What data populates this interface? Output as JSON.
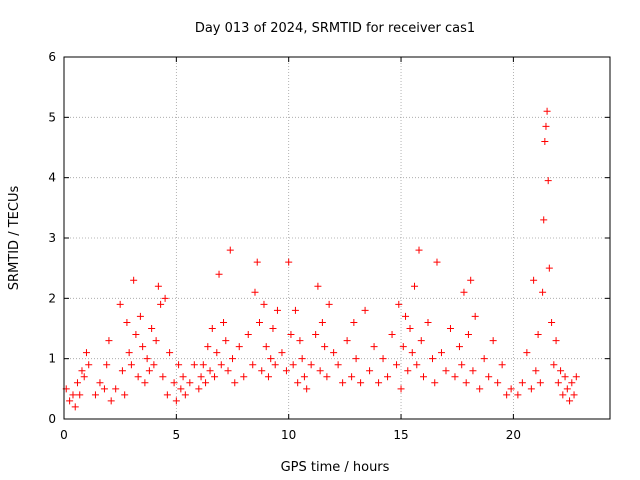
{
  "chart_data": {
    "type": "scatter",
    "title": "Day 013 of 2024, SRMTID for receiver cas1",
    "xlabel": "GPS time / hours",
    "ylabel": "SRMTID / TECUs",
    "xlim": [
      0,
      24.3
    ],
    "ylim": [
      0,
      6
    ],
    "xticks": [
      0,
      5,
      10,
      15,
      20
    ],
    "yticks": [
      0,
      1,
      2,
      3,
      4,
      5,
      6
    ],
    "grid": true,
    "marker": "plus",
    "color": "#ff0000",
    "series": [
      {
        "name": "SRMTID",
        "x": [
          0.1,
          0.25,
          0.4,
          0.5,
          0.6,
          0.7,
          0.8,
          0.9,
          1.0,
          1.1,
          1.4,
          1.6,
          1.8,
          1.9,
          2.0,
          2.1,
          2.3,
          2.5,
          2.6,
          2.7,
          2.8,
          2.9,
          3.0,
          3.1,
          3.2,
          3.3,
          3.4,
          3.5,
          3.6,
          3.7,
          3.8,
          3.9,
          4.0,
          4.1,
          4.2,
          4.3,
          4.4,
          4.5,
          4.6,
          4.7,
          4.9,
          5.0,
          5.1,
          5.2,
          5.3,
          5.4,
          5.6,
          5.8,
          6.0,
          6.1,
          6.2,
          6.3,
          6.4,
          6.5,
          6.6,
          6.7,
          6.8,
          6.9,
          7.0,
          7.1,
          7.2,
          7.3,
          7.4,
          7.5,
          7.6,
          7.8,
          8.0,
          8.2,
          8.4,
          8.5,
          8.6,
          8.7,
          8.8,
          8.9,
          9.0,
          9.1,
          9.2,
          9.3,
          9.4,
          9.5,
          9.7,
          9.9,
          10.0,
          10.1,
          10.2,
          10.3,
          10.4,
          10.5,
          10.6,
          10.7,
          10.8,
          11.0,
          11.2,
          11.3,
          11.4,
          11.5,
          11.6,
          11.7,
          11.8,
          12.0,
          12.2,
          12.4,
          12.6,
          12.8,
          12.9,
          13.0,
          13.2,
          13.4,
          13.6,
          13.8,
          14.0,
          14.2,
          14.4,
          14.6,
          14.8,
          14.9,
          15.0,
          15.1,
          15.2,
          15.3,
          15.4,
          15.5,
          15.6,
          15.7,
          15.8,
          15.9,
          16.0,
          16.2,
          16.4,
          16.5,
          16.6,
          16.8,
          17.0,
          17.2,
          17.4,
          17.6,
          17.7,
          17.8,
          17.9,
          18.0,
          18.1,
          18.2,
          18.3,
          18.5,
          18.7,
          18.9,
          19.1,
          19.3,
          19.5,
          19.7,
          19.9,
          20.2,
          20.4,
          20.6,
          20.8,
          20.9,
          21.0,
          21.1,
          21.2,
          21.3,
          21.35,
          21.4,
          21.45,
          21.5,
          21.55,
          21.6,
          21.7,
          21.8,
          21.9,
          22.0,
          22.1,
          22.2,
          22.3,
          22.4,
          22.5,
          22.6,
          22.7,
          22.8
        ],
        "y": [
          0.5,
          0.3,
          0.4,
          0.2,
          0.6,
          0.4,
          0.8,
          0.7,
          1.1,
          0.9,
          0.4,
          0.6,
          0.5,
          0.9,
          1.3,
          0.3,
          0.5,
          1.9,
          0.8,
          0.4,
          1.6,
          1.1,
          0.9,
          2.3,
          1.4,
          0.7,
          1.7,
          1.2,
          0.6,
          1.0,
          0.8,
          1.5,
          0.9,
          1.3,
          2.2,
          1.9,
          0.7,
          2.0,
          0.4,
          1.1,
          0.6,
          0.3,
          0.9,
          0.5,
          0.7,
          0.4,
          0.6,
          0.9,
          0.5,
          0.7,
          0.9,
          0.6,
          1.2,
          0.8,
          1.5,
          0.7,
          1.1,
          2.4,
          0.9,
          1.6,
          1.3,
          0.8,
          2.8,
          1.0,
          0.6,
          1.2,
          0.7,
          1.4,
          0.9,
          2.1,
          2.6,
          1.6,
          0.8,
          1.9,
          1.2,
          0.7,
          1.0,
          1.5,
          0.9,
          1.8,
          1.1,
          0.8,
          2.6,
          1.4,
          0.9,
          1.8,
          0.6,
          1.3,
          1.0,
          0.7,
          0.5,
          0.9,
          1.4,
          2.2,
          0.8,
          1.6,
          1.2,
          0.7,
          1.9,
          1.1,
          0.9,
          0.6,
          1.3,
          0.7,
          1.6,
          1.0,
          0.6,
          1.8,
          0.8,
          1.2,
          0.6,
          1.0,
          0.7,
          1.4,
          0.9,
          1.9,
          0.5,
          1.2,
          1.7,
          0.8,
          1.5,
          1.1,
          2.2,
          0.9,
          2.8,
          1.3,
          0.7,
          1.6,
          1.0,
          0.6,
          2.6,
          1.1,
          0.8,
          1.5,
          0.7,
          1.2,
          0.9,
          2.1,
          0.6,
          1.4,
          2.3,
          0.8,
          1.7,
          0.5,
          1.0,
          0.7,
          1.3,
          0.6,
          0.9,
          0.4,
          0.5,
          0.4,
          0.6,
          1.1,
          0.5,
          2.3,
          0.8,
          1.4,
          0.6,
          2.1,
          3.3,
          4.6,
          4.85,
          5.1,
          3.95,
          2.5,
          1.6,
          0.9,
          1.3,
          0.6,
          0.8,
          0.4,
          0.7,
          0.5,
          0.3,
          0.6,
          0.4,
          0.7
        ]
      }
    ]
  }
}
